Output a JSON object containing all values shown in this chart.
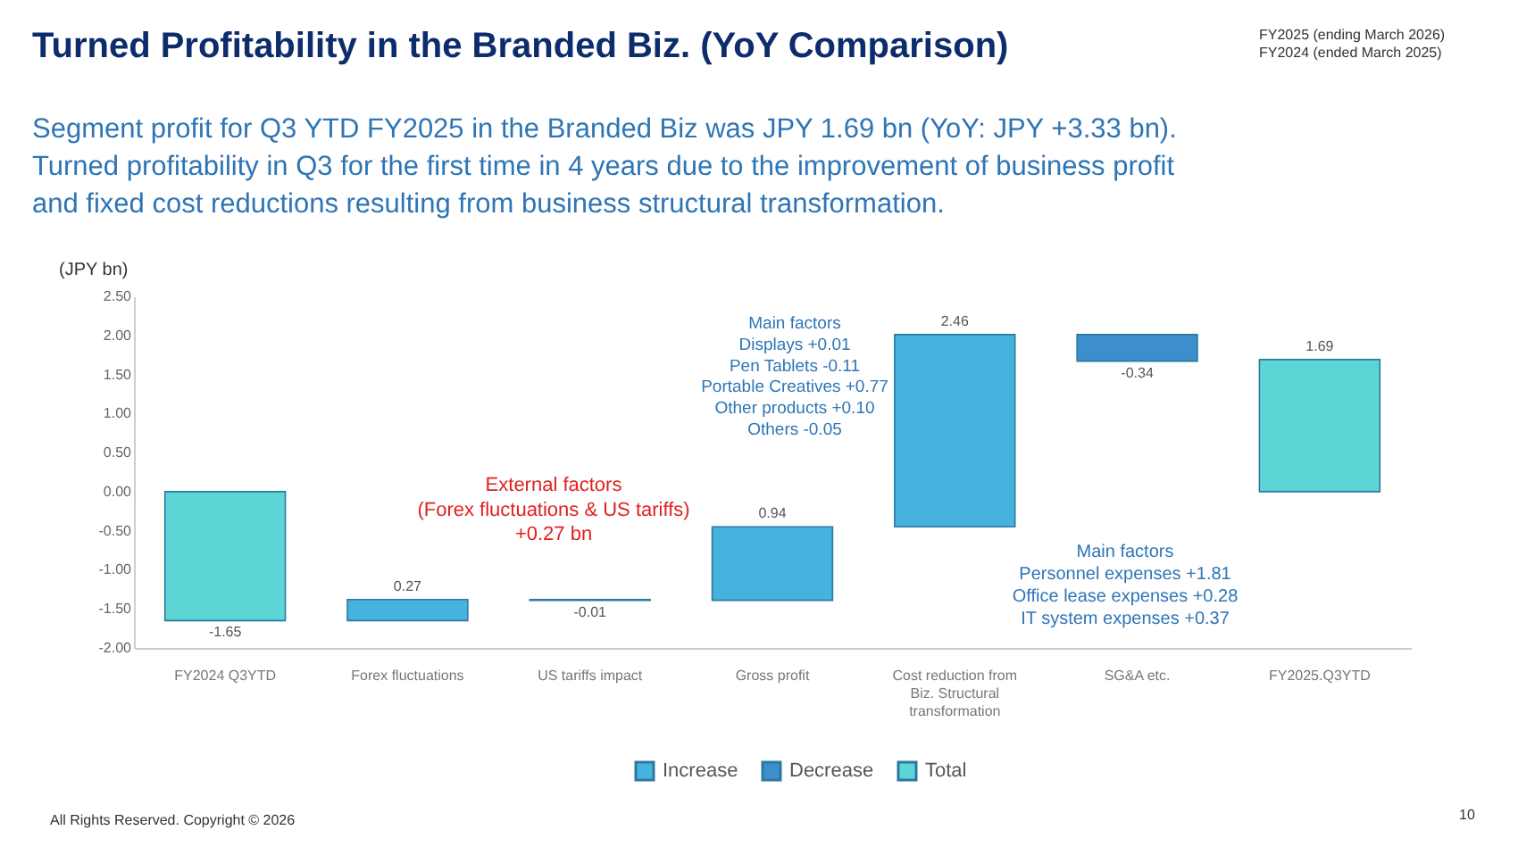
{
  "chart_data": {
    "type": "bar",
    "title": "Turned Profitability in the Branded Biz. (YoY Comparison)",
    "subtitle": "Segment profit for Q3 YTD FY2025 in the Branded Biz was JPY 1.69 bn (YoY: JPY +3.33 bn).\nTurned profitability in Q3 for the first time in 4 years due to the improvement of business profit\nand fixed cost reductions resulting from business structural transformation.",
    "ylabel": "(JPY bn)",
    "categories": [
      "FY2024 Q3YTD",
      "Forex fluctuations",
      "US tariffs impact",
      "Gross profit",
      "Cost reduction from Biz. Structural transformation",
      "SG&A etc.",
      "FY2025.Q3YTD"
    ],
    "series": [
      {
        "name": "Increase",
        "color": "#45b3de",
        "values": [
          null,
          0.27,
          null,
          0.94,
          2.46,
          null,
          null
        ],
        "base": [
          null,
          -1.65,
          null,
          -1.39,
          -0.45,
          null,
          null
        ]
      },
      {
        "name": "Decrease",
        "color": "#3d8fcc",
        "values": [
          null,
          null,
          -0.01,
          null,
          null,
          -0.34,
          null
        ],
        "base": [
          null,
          null,
          -1.38,
          null,
          null,
          2.01,
          null
        ]
      },
      {
        "name": "Total",
        "color": "#5dd5d6",
        "values": [
          -1.65,
          null,
          null,
          null,
          null,
          null,
          1.69
        ],
        "base": [
          0,
          null,
          null,
          null,
          null,
          null,
          0
        ]
      }
    ],
    "ylim": [
      -2,
      2.5
    ],
    "yticks": [
      {
        "value": -2,
        "label": "-2.00"
      },
      {
        "value": -1.5,
        "label": "-1.50"
      },
      {
        "value": -1,
        "label": "-1.00"
      },
      {
        "value": -0.5,
        "label": "-0.50"
      },
      {
        "value": 0,
        "label": "0.00"
      },
      {
        "value": 0.5,
        "label": "0.50"
      },
      {
        "value": 1,
        "label": "1.00"
      },
      {
        "value": 1.5,
        "label": "1.50"
      },
      {
        "value": 2,
        "label": "2.00"
      },
      {
        "value": 2.5,
        "label": "2.50"
      }
    ],
    "data_labels": true,
    "grid": false,
    "legend": "bottom",
    "annotations": [
      "FY2025 (ending March 2026)\nFY2024 (ended March 2025)",
      "External factors\n(Forex fluctuations & US tariffs)\n+0.27 bn",
      "Main factors\nDisplays +0.01\nPen Tablets -0.11\nPortable Creatives +0.77\nOther products +0.10\nOthers -0.05",
      "Main factors\nPersonnel expenses +1.81\nOffice lease expenses +0.28\nIT system expenses +0.37",
      "All Rights Reserved. Copyright © 2026",
      "10"
    ]
  }
}
